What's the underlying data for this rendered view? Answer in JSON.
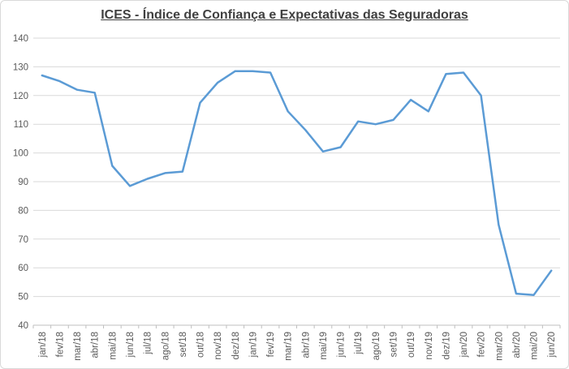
{
  "title": {
    "text": "ICES - Índice de Confiança e Expectativas das Seguradoras"
  },
  "chart_data": {
    "type": "line",
    "title": "ICES - Índice de Confiança e Expectativas das Seguradoras",
    "categories": [
      "jan/18",
      "fev/18",
      "mar/18",
      "abr/18",
      "mai/18",
      "jun/18",
      "jul/18",
      "ago/18",
      "set/18",
      "out/18",
      "nov/18",
      "dez/18",
      "jan/19",
      "fev/19",
      "mar/19",
      "abr/19",
      "mai/19",
      "jun/19",
      "jul/19",
      "ago/19",
      "set/19",
      "out/19",
      "nov/19",
      "dez/19",
      "jan/20",
      "fev/20",
      "mar/20",
      "abr/20",
      "mai/20",
      "jun/20"
    ],
    "series": [
      {
        "name": "ICES",
        "values": [
          127,
          125,
          122,
          121,
          95.5,
          88.5,
          91,
          93,
          93.5,
          117.5,
          124.5,
          128.5,
          128.5,
          128,
          114.5,
          108,
          100.5,
          102,
          111,
          110,
          111.5,
          118.5,
          114.5,
          127.5,
          128,
          120,
          75,
          51,
          50.5,
          59
        ]
      }
    ],
    "ylim": [
      40,
      140
    ],
    "ytick_step": 10,
    "yticks": [
      40,
      50,
      60,
      70,
      80,
      90,
      100,
      110,
      120,
      130,
      140
    ],
    "xlabel": "",
    "ylabel": "",
    "grid": true,
    "legend": "none"
  },
  "colors": {
    "title": "#404040",
    "axis_label": "#595959",
    "gridline": "#d9d9d9",
    "axis_line": "#bfbfbf",
    "line": "#5b9bd5",
    "background": "#ffffff",
    "border": "#d9d9d9"
  }
}
